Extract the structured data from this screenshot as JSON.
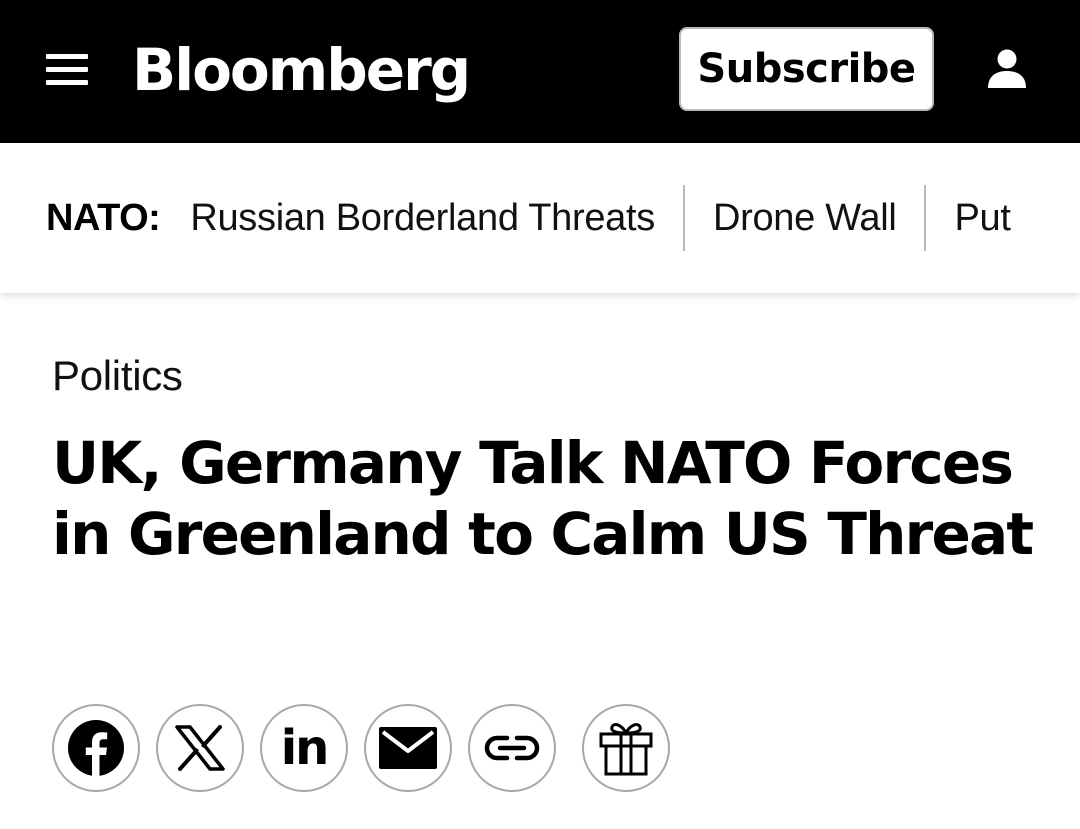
{
  "header": {
    "logo_text": "Bloomberg",
    "subscribe_label": "Subscribe",
    "menu_icon": "hamburger-menu-icon",
    "account_icon": "user-icon"
  },
  "topics": {
    "label": "NATO:",
    "items": [
      {
        "label": "Russian Borderland Threats"
      },
      {
        "label": "Drone Wall"
      },
      {
        "label": "Put"
      }
    ]
  },
  "article": {
    "category": "Politics",
    "headline": "UK, Germany Talk NATO Forces in Greenland to Calm US Threat"
  },
  "share": {
    "buttons": [
      {
        "icon": "facebook-icon"
      },
      {
        "icon": "x-icon"
      },
      {
        "icon": "linkedin-icon",
        "text": "in"
      },
      {
        "icon": "email-icon"
      },
      {
        "icon": "link-icon"
      },
      {
        "icon": "gift-icon"
      }
    ]
  }
}
